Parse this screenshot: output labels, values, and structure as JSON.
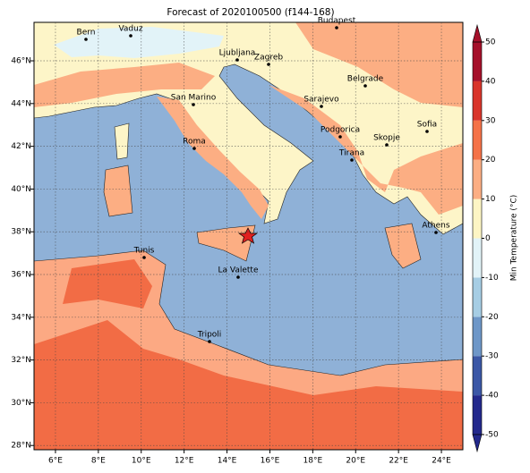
{
  "chart_data": {
    "type": "map",
    "title": "Forecast of 2020100500 (f144-168)",
    "xlim": [
      5,
      25
    ],
    "ylim": [
      27.8,
      47.8
    ],
    "xticks": [
      {
        "value": 6,
        "label": "6°E"
      },
      {
        "value": 8,
        "label": "8°E"
      },
      {
        "value": 10,
        "label": "10°E"
      },
      {
        "value": 12,
        "label": "12°E"
      },
      {
        "value": 14,
        "label": "14°E"
      },
      {
        "value": 16,
        "label": "16°E"
      },
      {
        "value": 18,
        "label": "18°E"
      },
      {
        "value": 20,
        "label": "20°E"
      },
      {
        "value": 22,
        "label": "22°E"
      },
      {
        "value": 24,
        "label": "24°E"
      }
    ],
    "yticks": [
      {
        "value": 28,
        "label": "28°N"
      },
      {
        "value": 30,
        "label": "30°N"
      },
      {
        "value": 32,
        "label": "32°N"
      },
      {
        "value": 34,
        "label": "34°N"
      },
      {
        "value": 36,
        "label": "36°N"
      },
      {
        "value": 38,
        "label": "38°N"
      },
      {
        "value": 40,
        "label": "40°N"
      },
      {
        "value": 42,
        "label": "42°N"
      },
      {
        "value": 44,
        "label": "44°N"
      },
      {
        "value": 46,
        "label": "46°N"
      }
    ],
    "grid": true,
    "cities": [
      "Bern",
      "Vaduz",
      "Budapest",
      "Ljubljana",
      "Zagreb",
      "Belgrade",
      "San Marino",
      "Sarajevo",
      "Sofia",
      "Podgorica",
      "Skopje",
      "Roma",
      "Tirana",
      "Athens",
      "Tunis",
      "La Valette",
      "Tripoli"
    ],
    "colorbar": {
      "label": "Min Temperature (°C)",
      "lim": [
        -50,
        50
      ],
      "ticks": [
        -50,
        -40,
        -30,
        -20,
        -10,
        0,
        10,
        20,
        30,
        40,
        50
      ],
      "colors": [
        "#23298c",
        "#3b57a6",
        "#6e97c8",
        "#a6cde4",
        "#e2f3f8",
        "#fdf5c4",
        "#fcae83",
        "#f47248",
        "#d9352b",
        "#a5102a"
      ]
    }
  }
}
